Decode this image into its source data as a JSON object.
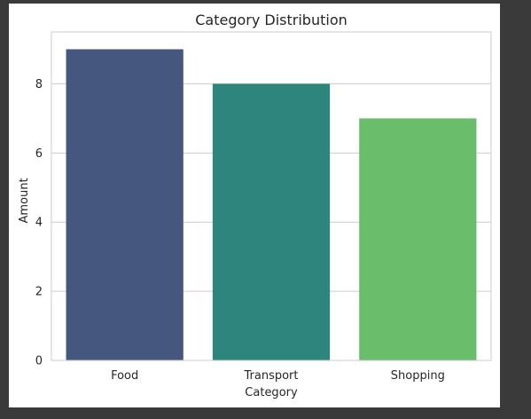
{
  "chart_data": {
    "type": "bar",
    "title": "Category Distribution",
    "xlabel": "Category",
    "ylabel": "Amount",
    "categories": [
      "Food",
      "Transport",
      "Shopping"
    ],
    "values": [
      9,
      8,
      7
    ],
    "colors": [
      "#45577f",
      "#2e857d",
      "#6abd6b"
    ],
    "ylim": [
      0,
      9.5
    ],
    "yticks": [
      0,
      2,
      4,
      6,
      8
    ],
    "grid": true,
    "legend": "none"
  }
}
